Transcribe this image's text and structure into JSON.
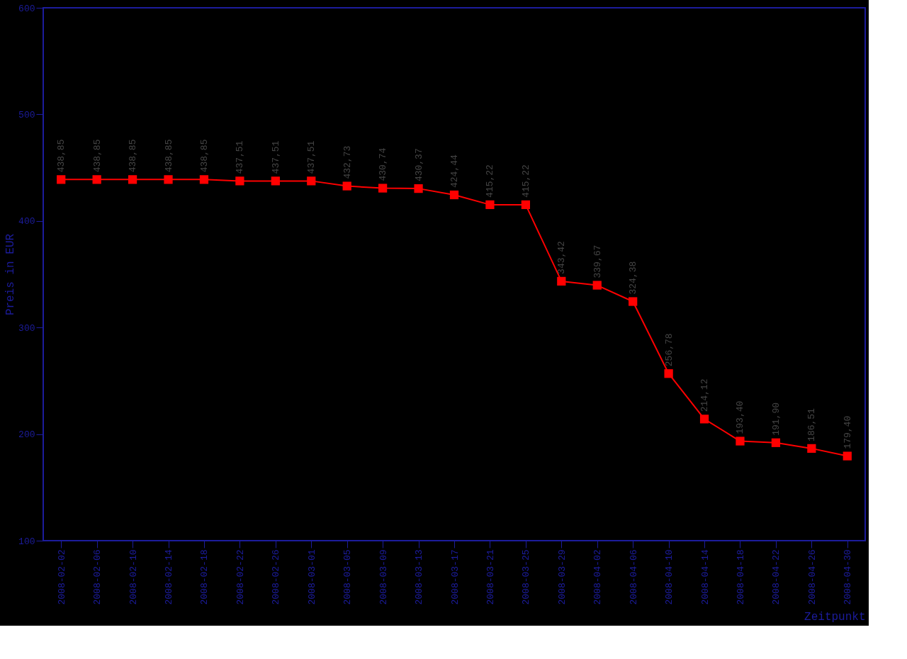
{
  "chart_data": {
    "type": "line",
    "xlabel": "Zeitpunkt",
    "ylabel": "Preis in EUR",
    "categories": [
      "2008-02-02",
      "2008-02-06",
      "2008-02-10",
      "2008-02-14",
      "2008-02-18",
      "2008-02-22",
      "2008-02-26",
      "2008-03-01",
      "2008-03-05",
      "2008-03-09",
      "2008-03-13",
      "2008-03-17",
      "2008-03-21",
      "2008-03-25",
      "2008-03-29",
      "2008-04-02",
      "2008-04-06",
      "2008-04-10",
      "2008-04-14",
      "2008-04-18",
      "2008-04-22",
      "2008-04-26",
      "2008-04-30"
    ],
    "series": [
      {
        "color": "#ff0000",
        "values": [
          438.85,
          438.85,
          438.85,
          438.85,
          438.85,
          437.51,
          437.51,
          437.51,
          432.73,
          430.74,
          430.37,
          424.44,
          415.22,
          415.22,
          343.42,
          339.67,
          324.38,
          256.78,
          214.12,
          193.4,
          191.9,
          186.51,
          179.4
        ],
        "value_labels": [
          "438,85",
          "438,85",
          "438,85",
          "438,85",
          "438,85",
          "437,51",
          "437,51",
          "437,51",
          "432,73",
          "430,74",
          "430,37",
          "424,44",
          "415,22",
          "415,22",
          "343,42",
          "339,67",
          "324,38",
          "256,78",
          "214,12",
          "193,40",
          "191,90",
          "186,51",
          "179,40"
        ]
      }
    ],
    "ylim": [
      100,
      600
    ],
    "yticks": [
      100,
      200,
      300,
      400,
      500,
      600
    ],
    "marker": "square",
    "line_style": "solid",
    "grid": false
  }
}
